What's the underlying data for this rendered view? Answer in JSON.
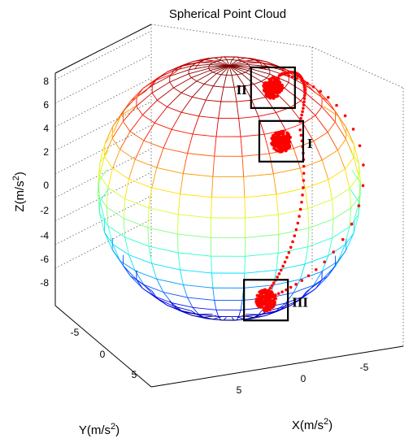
{
  "chart_data": {
    "type": "scatter",
    "title": "Spherical Point Cloud",
    "xlabel": "X(m/s",
    "ylabel": "Y(m/s",
    "zlabel": "Z(m/s",
    "unit_superscript": "2",
    "unit_close": ")",
    "x_ticks": [
      "5",
      "0",
      "-5"
    ],
    "y_ticks": [
      "-5",
      "0",
      "5"
    ],
    "z_ticks": [
      "8",
      "6",
      "4",
      "2",
      "0",
      "-2",
      "-4",
      "-6",
      "-8"
    ],
    "sphere_radius": 9.8,
    "grid": true,
    "colormap": "jet",
    "point_color": "#ff0000",
    "regions": [
      {
        "label": "I",
        "x": -5.2,
        "y": 0.4,
        "z": 5.2
      },
      {
        "label": "II",
        "x": 1.2,
        "y": -6.8,
        "z": 5.6
      },
      {
        "label": "III",
        "x": -7.2,
        "y": 4.8,
        "z": -5.6
      }
    ],
    "paths": [
      {
        "from": "II",
        "to": "I"
      },
      {
        "from": "I",
        "to": "III"
      },
      {
        "from": "II",
        "to": "III"
      }
    ]
  }
}
